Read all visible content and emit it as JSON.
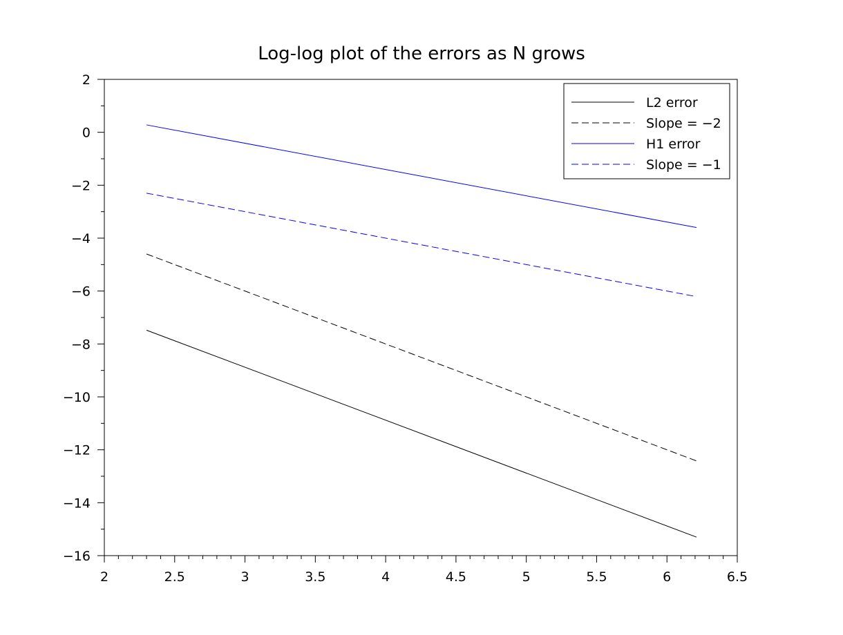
{
  "chart_data": {
    "type": "line",
    "title": "Log-log plot of the errors as N grows",
    "xlabel": "",
    "ylabel": "",
    "xlim": [
      2,
      6.5
    ],
    "ylim": [
      -16,
      2
    ],
    "x_ticks": [
      2,
      2.5,
      3,
      3.5,
      4,
      4.5,
      5,
      5.5,
      6,
      6.5
    ],
    "x_tick_labels": [
      "2",
      "2.5",
      "3",
      "3.5",
      "4",
      "4.5",
      "5",
      "5.5",
      "6",
      "6.5"
    ],
    "y_ticks": [
      -16,
      -14,
      -12,
      -10,
      -8,
      -6,
      -4,
      -2,
      0,
      2
    ],
    "y_tick_labels": [
      "−16",
      "−14",
      "−12",
      "−10",
      "−8",
      "−6",
      "−4",
      "−2",
      "0",
      "2"
    ],
    "grid": false,
    "legend_position": "top-right",
    "series": [
      {
        "name": "L2 error",
        "color": "#000000",
        "dash": "solid",
        "x": [
          2.3,
          6.21
        ],
        "y": [
          -7.48,
          -15.3
        ]
      },
      {
        "name": "Slope = −2",
        "color": "#000000",
        "dash": "dashed",
        "x": [
          2.3,
          6.21
        ],
        "y": [
          -4.6,
          -12.42
        ]
      },
      {
        "name": "H1 error",
        "color": "#0000ff",
        "dash": "solid",
        "x": [
          2.3,
          6.21
        ],
        "y": [
          0.28,
          -3.6
        ]
      },
      {
        "name": "Slope = −1",
        "color": "#0000ff",
        "dash": "dashed",
        "x": [
          2.3,
          6.21
        ],
        "y": [
          -2.3,
          -6.21
        ]
      }
    ]
  }
}
